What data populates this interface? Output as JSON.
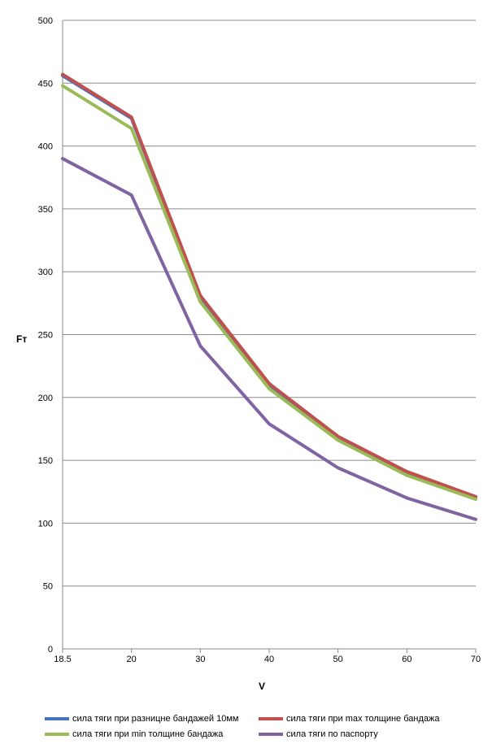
{
  "chart_data": {
    "type": "line",
    "title": "",
    "xlabel": "V",
    "ylabel": "Fт",
    "categories": [
      "18.5",
      "20",
      "30",
      "40",
      "50",
      "60",
      "70"
    ],
    "ylim": [
      0,
      500
    ],
    "yticks": [
      "0",
      "50",
      "100",
      "150",
      "200",
      "250",
      "300",
      "350",
      "400",
      "450",
      "500"
    ],
    "grid": true,
    "legend_position": "bottom",
    "series": [
      {
        "name": "сила тяги при разницне бандажей 10мм",
        "color": "#4472C4",
        "values": [
          456,
          422,
          280,
          210,
          168,
          140,
          121
        ]
      },
      {
        "name": "сила тяги при max толщине бандажа",
        "color": "#C0504D",
        "values": [
          457,
          423,
          281,
          211,
          169,
          141,
          121
        ]
      },
      {
        "name": "сила тяги при min толщине бандажа",
        "color": "#9BBB59",
        "values": [
          448,
          414,
          276,
          207,
          166,
          138,
          119
        ]
      },
      {
        "name": "сила тяги по паспорту",
        "color": "#8064A2",
        "values": [
          390,
          361,
          241,
          179,
          144,
          120,
          103
        ]
      }
    ]
  }
}
